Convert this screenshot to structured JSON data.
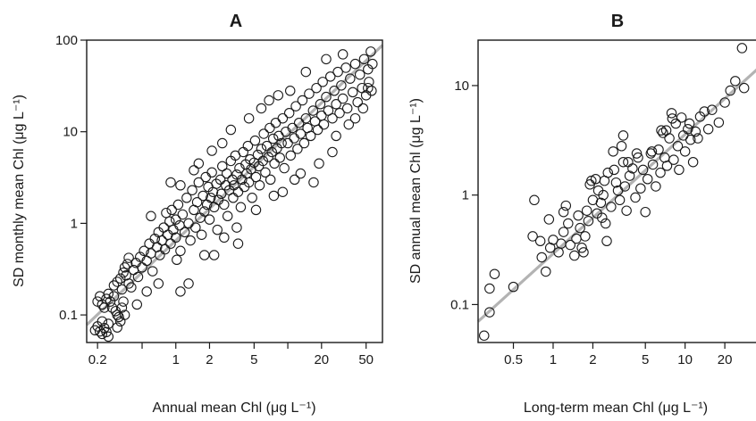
{
  "chart_data": [
    {
      "type": "scatter",
      "panel": "A",
      "title": "A",
      "xlabel": "Annual mean Chl (μg L⁻¹)",
      "ylabel": "SD monthly mean Chl (μg L⁻¹)",
      "xscale": "log",
      "yscale": "log",
      "xlim": [
        0.16,
        70
      ],
      "ylim": [
        0.05,
        100
      ],
      "xticks": [
        {
          "v": 0.2,
          "label": "0.2"
        },
        {
          "v": 1,
          "label": "1"
        },
        {
          "v": 2,
          "label": "2"
        },
        {
          "v": 5,
          "label": "5"
        },
        {
          "v": 20,
          "label": "20"
        },
        {
          "v": 50,
          "label": "50"
        }
      ],
      "yticks": [
        {
          "v": 0.1,
          "label": "0.1"
        },
        {
          "v": 1,
          "label": "1"
        },
        {
          "v": 10,
          "label": "10"
        },
        {
          "v": 100,
          "label": "100"
        }
      ],
      "xminor": [
        0.5,
        10
      ],
      "fit_line": {
        "x": [
          0.16,
          70
        ],
        "y": [
          0.078,
          88
        ],
        "color": "#b3b3b3"
      },
      "marker": "open-circle",
      "grid": false,
      "points": [
        [
          0.19,
          0.068
        ],
        [
          0.2,
          0.075
        ],
        [
          0.21,
          0.066
        ],
        [
          0.22,
          0.085
        ],
        [
          0.22,
          0.062
        ],
        [
          0.23,
          0.072
        ],
        [
          0.24,
          0.065
        ],
        [
          0.25,
          0.058
        ],
        [
          0.25,
          0.08
        ],
        [
          0.2,
          0.14
        ],
        [
          0.21,
          0.16
        ],
        [
          0.22,
          0.13
        ],
        [
          0.23,
          0.12
        ],
        [
          0.24,
          0.15
        ],
        [
          0.25,
          0.17
        ],
        [
          0.26,
          0.14
        ],
        [
          0.27,
          0.12
        ],
        [
          0.28,
          0.16
        ],
        [
          0.29,
          0.11
        ],
        [
          0.3,
          0.1
        ],
        [
          0.31,
          0.095
        ],
        [
          0.3,
          0.073
        ],
        [
          0.32,
          0.085
        ],
        [
          0.33,
          0.12
        ],
        [
          0.34,
          0.14
        ],
        [
          0.35,
          0.1
        ],
        [
          0.28,
          0.21
        ],
        [
          0.3,
          0.23
        ],
        [
          0.32,
          0.25
        ],
        [
          0.33,
          0.19
        ],
        [
          0.34,
          0.29
        ],
        [
          0.35,
          0.33
        ],
        [
          0.36,
          0.27
        ],
        [
          0.37,
          0.36
        ],
        [
          0.38,
          0.22
        ],
        [
          0.4,
          0.2
        ],
        [
          0.42,
          0.31
        ],
        [
          0.44,
          0.37
        ],
        [
          0.46,
          0.26
        ],
        [
          0.48,
          0.43
        ],
        [
          0.5,
          0.33
        ],
        [
          0.52,
          0.5
        ],
        [
          0.55,
          0.39
        ],
        [
          0.58,
          0.6
        ],
        [
          0.6,
          0.47
        ],
        [
          0.62,
          0.3
        ],
        [
          0.65,
          0.68
        ],
        [
          0.68,
          0.55
        ],
        [
          0.7,
          0.8
        ],
        [
          0.72,
          0.45
        ],
        [
          0.75,
          0.65
        ],
        [
          0.78,
          0.9
        ],
        [
          0.8,
          0.52
        ],
        [
          0.82,
          1.3
        ],
        [
          0.85,
          0.75
        ],
        [
          0.88,
          1.05
        ],
        [
          0.9,
          0.6
        ],
        [
          0.92,
          1.4
        ],
        [
          0.95,
          0.85
        ],
        [
          1.0,
          0.7
        ],
        [
          1.0,
          1.1
        ],
        [
          1.02,
          0.4
        ],
        [
          1.05,
          1.6
        ],
        [
          1.08,
          0.95
        ],
        [
          1.1,
          0.5
        ],
        [
          1.15,
          1.25
        ],
        [
          1.2,
          0.8
        ],
        [
          1.25,
          1.9
        ],
        [
          1.3,
          1.0
        ],
        [
          1.35,
          0.65
        ],
        [
          1.4,
          2.3
        ],
        [
          1.45,
          1.4
        ],
        [
          1.5,
          0.9
        ],
        [
          1.55,
          1.7
        ],
        [
          1.6,
          2.8
        ],
        [
          1.65,
          1.15
        ],
        [
          1.7,
          0.75
        ],
        [
          1.75,
          2.0
        ],
        [
          1.8,
          1.35
        ],
        [
          1.85,
          3.2
        ],
        [
          1.9,
          1.6
        ],
        [
          1.95,
          2.5
        ],
        [
          2.0,
          1.1
        ],
        [
          2.05,
          1.9
        ],
        [
          2.1,
          3.6
        ],
        [
          2.15,
          2.2
        ],
        [
          2.2,
          1.5
        ],
        [
          2.3,
          2.7
        ],
        [
          2.35,
          0.85
        ],
        [
          2.4,
          1.8
        ],
        [
          2.5,
          3.0
        ],
        [
          2.55,
          2.1
        ],
        [
          2.6,
          4.2
        ],
        [
          2.7,
          1.6
        ],
        [
          2.8,
          2.6
        ],
        [
          2.85,
          3.5
        ],
        [
          2.9,
          1.2
        ],
        [
          3.0,
          2.3
        ],
        [
          3.1,
          4.8
        ],
        [
          3.2,
          3.0
        ],
        [
          3.25,
          1.9
        ],
        [
          3.3,
          2.6
        ],
        [
          3.4,
          5.5
        ],
        [
          3.5,
          3.4
        ],
        [
          3.6,
          2.2
        ],
        [
          3.7,
          4.0
        ],
        [
          3.8,
          1.5
        ],
        [
          3.9,
          3.0
        ],
        [
          4.0,
          6.0
        ],
        [
          4.1,
          2.5
        ],
        [
          4.2,
          4.4
        ],
        [
          4.3,
          3.5
        ],
        [
          4.4,
          7.0
        ],
        [
          4.5,
          2.8
        ],
        [
          4.6,
          5.0
        ],
        [
          4.7,
          3.9
        ],
        [
          4.8,
          1.9
        ],
        [
          5.0,
          4.6
        ],
        [
          5.1,
          8.0
        ],
        [
          5.2,
          3.2
        ],
        [
          5.4,
          5.6
        ],
        [
          5.5,
          4.2
        ],
        [
          5.6,
          2.6
        ],
        [
          5.8,
          6.5
        ],
        [
          6.0,
          4.8
        ],
        [
          6.1,
          9.5
        ],
        [
          6.3,
          3.6
        ],
        [
          6.5,
          7.0
        ],
        [
          6.7,
          5.3
        ],
        [
          6.9,
          11.0
        ],
        [
          7.0,
          3.0
        ],
        [
          7.2,
          6.0
        ],
        [
          7.4,
          8.4
        ],
        [
          7.6,
          4.5
        ],
        [
          7.8,
          12.5
        ],
        [
          8.0,
          6.6
        ],
        [
          8.3,
          9.0
        ],
        [
          8.5,
          5.2
        ],
        [
          8.8,
          7.5
        ],
        [
          9.0,
          14.0
        ],
        [
          9.3,
          4.0
        ],
        [
          9.6,
          10.0
        ],
        [
          10.0,
          7.5
        ],
        [
          10.3,
          16.0
        ],
        [
          10.6,
          5.5
        ],
        [
          11.0,
          11.0
        ],
        [
          11.4,
          8.5
        ],
        [
          11.8,
          19.0
        ],
        [
          12.2,
          6.5
        ],
        [
          12.6,
          12.5
        ],
        [
          13.0,
          9.5
        ],
        [
          13.5,
          22.0
        ],
        [
          14.0,
          7.5
        ],
        [
          14.5,
          14.0
        ],
        [
          15.0,
          11.0
        ],
        [
          15.5,
          26.0
        ],
        [
          16.0,
          9.0
        ],
        [
          16.8,
          17.0
        ],
        [
          17.5,
          13.0
        ],
        [
          18.0,
          30.0
        ],
        [
          18.5,
          10.5
        ],
        [
          19.5,
          20.0
        ],
        [
          20.0,
          15.0
        ],
        [
          20.5,
          35.0
        ],
        [
          21.0,
          12.0
        ],
        [
          22.0,
          24.0
        ],
        [
          23.0,
          17.0
        ],
        [
          24.0,
          40.0
        ],
        [
          25.0,
          14.0
        ],
        [
          26.0,
          28.0
        ],
        [
          27.0,
          20.0
        ],
        [
          28.0,
          45.0
        ],
        [
          29.0,
          16.0
        ],
        [
          30.0,
          32.0
        ],
        [
          31.0,
          23.0
        ],
        [
          33.0,
          50.0
        ],
        [
          34.0,
          18.0
        ],
        [
          36.0,
          38.0
        ],
        [
          38.0,
          27.0
        ],
        [
          40.0,
          55.0
        ],
        [
          42.0,
          21.0
        ],
        [
          44.0,
          42.0
        ],
        [
          46.0,
          30.0
        ],
        [
          48.0,
          62.0
        ],
        [
          50.0,
          25.0
        ],
        [
          52.0,
          48.0
        ],
        [
          53.0,
          35.0
        ],
        [
          55.0,
          75.0
        ],
        [
          56.0,
          28.0
        ],
        [
          57.0,
          55.0
        ],
        [
          1.3,
          0.22
        ],
        [
          2.2,
          0.45
        ],
        [
          3.6,
          0.6
        ],
        [
          0.9,
          2.8
        ],
        [
          1.6,
          4.5
        ],
        [
          2.6,
          7.5
        ],
        [
          4.5,
          14.0
        ],
        [
          6.8,
          22.0
        ],
        [
          10.5,
          28.0
        ],
        [
          9.0,
          2.2
        ],
        [
          13.0,
          3.5
        ],
        [
          19.0,
          4.5
        ],
        [
          27.0,
          9.0
        ],
        [
          35.0,
          12.0
        ],
        [
          0.6,
          1.2
        ],
        [
          0.7,
          0.22
        ],
        [
          1.1,
          0.18
        ],
        [
          0.45,
          0.13
        ],
        [
          0.55,
          0.18
        ],
        [
          0.38,
          0.42
        ],
        [
          5.8,
          18.0
        ],
        [
          8.2,
          25.0
        ],
        [
          3.1,
          10.5
        ],
        [
          2.1,
          6.2
        ],
        [
          1.45,
          3.8
        ],
        [
          1.1,
          2.6
        ],
        [
          14.5,
          45.0
        ],
        [
          22.0,
          62.0
        ],
        [
          31.0,
          70.0
        ],
        [
          17.0,
          2.8
        ],
        [
          25.0,
          6.0
        ],
        [
          40.0,
          14.0
        ],
        [
          47.0,
          18.0
        ],
        [
          52.0,
          30.0
        ],
        [
          5.2,
          1.4
        ],
        [
          7.5,
          2.0
        ],
        [
          3.5,
          0.9
        ],
        [
          2.7,
          0.7
        ],
        [
          1.8,
          0.45
        ],
        [
          11.5,
          3.0
        ]
      ]
    },
    {
      "type": "scatter",
      "panel": "B",
      "title": "B",
      "xlabel": "Long-term mean Chl (μg L⁻¹)",
      "ylabel": "SD annual mean Chl (μg L⁻¹)",
      "xscale": "log",
      "yscale": "log",
      "xlim": [
        0.27,
        35
      ],
      "ylim": [
        0.045,
        26
      ],
      "xticks": [
        {
          "v": 0.5,
          "label": "0.5"
        },
        {
          "v": 1,
          "label": "1"
        },
        {
          "v": 2,
          "label": "2"
        },
        {
          "v": 5,
          "label": "5"
        },
        {
          "v": 10,
          "label": "10"
        },
        {
          "v": 20,
          "label": "20"
        }
      ],
      "yticks": [
        {
          "v": 0.1,
          "label": "0.1"
        },
        {
          "v": 1,
          "label": "1"
        },
        {
          "v": 10,
          "label": "10"
        }
      ],
      "xminor": [],
      "fit_line": {
        "x": [
          0.27,
          35
        ],
        "y": [
          0.07,
          14
        ],
        "color": "#b3b3b3"
      },
      "marker": "open-circle",
      "grid": false,
      "points": [
        [
          0.3,
          0.052
        ],
        [
          0.33,
          0.085
        ],
        [
          0.33,
          0.14
        ],
        [
          0.36,
          0.19
        ],
        [
          0.5,
          0.145
        ],
        [
          0.7,
          0.42
        ],
        [
          0.72,
          0.9
        ],
        [
          0.8,
          0.38
        ],
        [
          0.82,
          0.27
        ],
        [
          0.88,
          0.2
        ],
        [
          0.95,
          0.33
        ],
        [
          1.0,
          0.39
        ],
        [
          1.1,
          0.3
        ],
        [
          1.15,
          0.36
        ],
        [
          1.2,
          0.46
        ],
        [
          1.25,
          0.8
        ],
        [
          1.3,
          0.55
        ],
        [
          1.35,
          0.35
        ],
        [
          1.45,
          0.28
        ],
        [
          1.5,
          0.4
        ],
        [
          1.55,
          0.65
        ],
        [
          1.6,
          0.5
        ],
        [
          1.65,
          0.33
        ],
        [
          1.7,
          0.3
        ],
        [
          1.75,
          0.42
        ],
        [
          1.8,
          0.72
        ],
        [
          1.85,
          0.58
        ],
        [
          1.9,
          1.25
        ],
        [
          1.95,
          1.35
        ],
        [
          2.0,
          0.9
        ],
        [
          2.1,
          1.4
        ],
        [
          2.15,
          0.68
        ],
        [
          2.2,
          1.1
        ],
        [
          2.3,
          0.85
        ],
        [
          2.35,
          0.62
        ],
        [
          2.4,
          1.0
        ],
        [
          2.5,
          0.55
        ],
        [
          2.55,
          0.38
        ],
        [
          2.6,
          1.6
        ],
        [
          2.75,
          0.78
        ],
        [
          2.85,
          2.5
        ],
        [
          3.0,
          1.3
        ],
        [
          3.1,
          1.1
        ],
        [
          3.2,
          0.9
        ],
        [
          3.3,
          2.8
        ],
        [
          3.4,
          3.5
        ],
        [
          3.5,
          1.2
        ],
        [
          3.6,
          0.72
        ],
        [
          3.7,
          2.0
        ],
        [
          3.8,
          1.5
        ],
        [
          4.0,
          1.75
        ],
        [
          4.2,
          0.95
        ],
        [
          4.4,
          2.2
        ],
        [
          4.6,
          1.15
        ],
        [
          4.8,
          1.7
        ],
        [
          5.0,
          0.7
        ],
        [
          5.2,
          1.4
        ],
        [
          5.5,
          2.4
        ],
        [
          5.7,
          1.9
        ],
        [
          6.0,
          1.2
        ],
        [
          6.3,
          2.6
        ],
        [
          6.5,
          1.6
        ],
        [
          6.8,
          3.7
        ],
        [
          7.0,
          2.2
        ],
        [
          7.3,
          1.85
        ],
        [
          7.6,
          3.3
        ],
        [
          7.9,
          5.6
        ],
        [
          8.2,
          2.1
        ],
        [
          8.5,
          4.5
        ],
        [
          8.8,
          2.8
        ],
        [
          9.0,
          1.7
        ],
        [
          9.4,
          5.1
        ],
        [
          9.7,
          3.5
        ],
        [
          10.0,
          2.5
        ],
        [
          10.5,
          4.0
        ],
        [
          11.0,
          3.2
        ],
        [
          11.5,
          2.0
        ],
        [
          12.0,
          3.8
        ],
        [
          13.0,
          5.2
        ],
        [
          14.0,
          5.8
        ],
        [
          16.0,
          6.0
        ],
        [
          18.0,
          4.6
        ],
        [
          20.0,
          7.0
        ],
        [
          22.0,
          9.0
        ],
        [
          24.0,
          11.0
        ],
        [
          27.0,
          22.0
        ],
        [
          28.0,
          9.5
        ],
        [
          7.2,
          3.9
        ],
        [
          5.6,
          2.5
        ],
        [
          4.3,
          2.4
        ],
        [
          3.4,
          2.0
        ],
        [
          2.45,
          1.35
        ],
        [
          1.2,
          0.7
        ],
        [
          0.93,
          0.6
        ],
        [
          10.8,
          4.5
        ],
        [
          6.6,
          3.9
        ],
        [
          8.0,
          5.0
        ],
        [
          12.5,
          3.3
        ],
        [
          15.0,
          4.0
        ],
        [
          2.9,
          1.7
        ]
      ]
    }
  ]
}
